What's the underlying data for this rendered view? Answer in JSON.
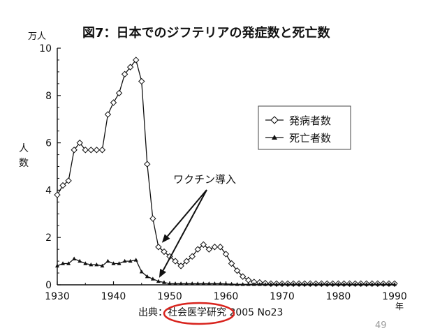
{
  "chart_data": {
    "type": "line",
    "title": "図7：日本でのジフテリアの発症数と死亡数",
    "y_unit": "万人",
    "ylabel": "人数",
    "x_unit": "年",
    "xlim": [
      1930,
      1990
    ],
    "ylim": [
      0,
      10
    ],
    "x_ticks": [
      "1930",
      "1940",
      "1950",
      "1960",
      "1970",
      "1980",
      "1990"
    ],
    "y_ticks": [
      "0",
      "2",
      "4",
      "6",
      "8",
      "10"
    ],
    "legend_position": "right",
    "grid": false,
    "series": [
      {
        "name": "発病者数",
        "marker": "diamond",
        "x": [
          1930,
          1931,
          1932,
          1933,
          1934,
          1935,
          1936,
          1937,
          1938,
          1939,
          1940,
          1941,
          1942,
          1943,
          1944,
          1945,
          1946,
          1947,
          1948,
          1949,
          1950,
          1951,
          1952,
          1953,
          1954,
          1955,
          1956,
          1957,
          1958,
          1959,
          1960,
          1961,
          1962,
          1963,
          1964,
          1965,
          1966,
          1967,
          1968,
          1969,
          1970,
          1971,
          1972,
          1973,
          1974,
          1975,
          1976,
          1977,
          1978,
          1979,
          1980,
          1981,
          1982,
          1983,
          1984,
          1985,
          1986,
          1987,
          1988,
          1989,
          1990
        ],
        "values": [
          3.8,
          4.2,
          4.4,
          5.7,
          6.0,
          5.7,
          5.7,
          5.7,
          5.7,
          7.2,
          7.7,
          8.1,
          8.9,
          9.2,
          9.5,
          8.6,
          5.1,
          2.8,
          1.6,
          1.4,
          1.2,
          1.0,
          0.8,
          1.0,
          1.2,
          1.5,
          1.7,
          1.5,
          1.6,
          1.6,
          1.3,
          0.9,
          0.6,
          0.35,
          0.2,
          0.12,
          0.1,
          0.07,
          0.05,
          0.05,
          0.05,
          0.05,
          0.05,
          0.05,
          0.05,
          0.05,
          0.05,
          0.05,
          0.05,
          0.05,
          0.05,
          0.05,
          0.05,
          0.05,
          0.05,
          0.05,
          0.05,
          0.05,
          0.05,
          0.05,
          0.05
        ]
      },
      {
        "name": "死亡者数",
        "marker": "triangle",
        "x": [
          1930,
          1931,
          1932,
          1933,
          1934,
          1935,
          1936,
          1937,
          1938,
          1939,
          1940,
          1941,
          1942,
          1943,
          1944,
          1945,
          1946,
          1947,
          1948,
          1949,
          1950,
          1951,
          1952,
          1953,
          1954,
          1955,
          1956,
          1957,
          1958,
          1959,
          1960,
          1961,
          1962,
          1963,
          1964,
          1965,
          1966,
          1967,
          1968,
          1969,
          1970,
          1971,
          1972,
          1973,
          1974,
          1975,
          1976,
          1977,
          1978,
          1979,
          1980,
          1981,
          1982,
          1983,
          1984,
          1985,
          1986,
          1987,
          1988,
          1989,
          1990
        ],
        "values": [
          0.8,
          0.9,
          0.9,
          1.1,
          1.0,
          0.9,
          0.85,
          0.85,
          0.8,
          1.0,
          0.9,
          0.9,
          1.0,
          1.0,
          1.05,
          0.55,
          0.35,
          0.25,
          0.15,
          0.1,
          0.05,
          0.05,
          0.05,
          0.05,
          0.05,
          0.05,
          0.05,
          0.05,
          0.05,
          0.05,
          0.04,
          0.03,
          0.02,
          0.02,
          0.02,
          0.02,
          0.02,
          0.02,
          0.02,
          0.02,
          0.02,
          0.02,
          0.02,
          0.02,
          0.02,
          0.02,
          0.02,
          0.02,
          0.02,
          0.02,
          0.02,
          0.02,
          0.02,
          0.02,
          0.02,
          0.02,
          0.02,
          0.02,
          0.02,
          0.02,
          0.02
        ]
      }
    ],
    "annotations": [
      {
        "text": "ワクチン導入",
        "points_to_x": [
          1948,
          1948
        ]
      }
    ],
    "source": "出典：社会医学研究 2005 No23",
    "highlight": "社会医学研究",
    "page_number": "49"
  }
}
